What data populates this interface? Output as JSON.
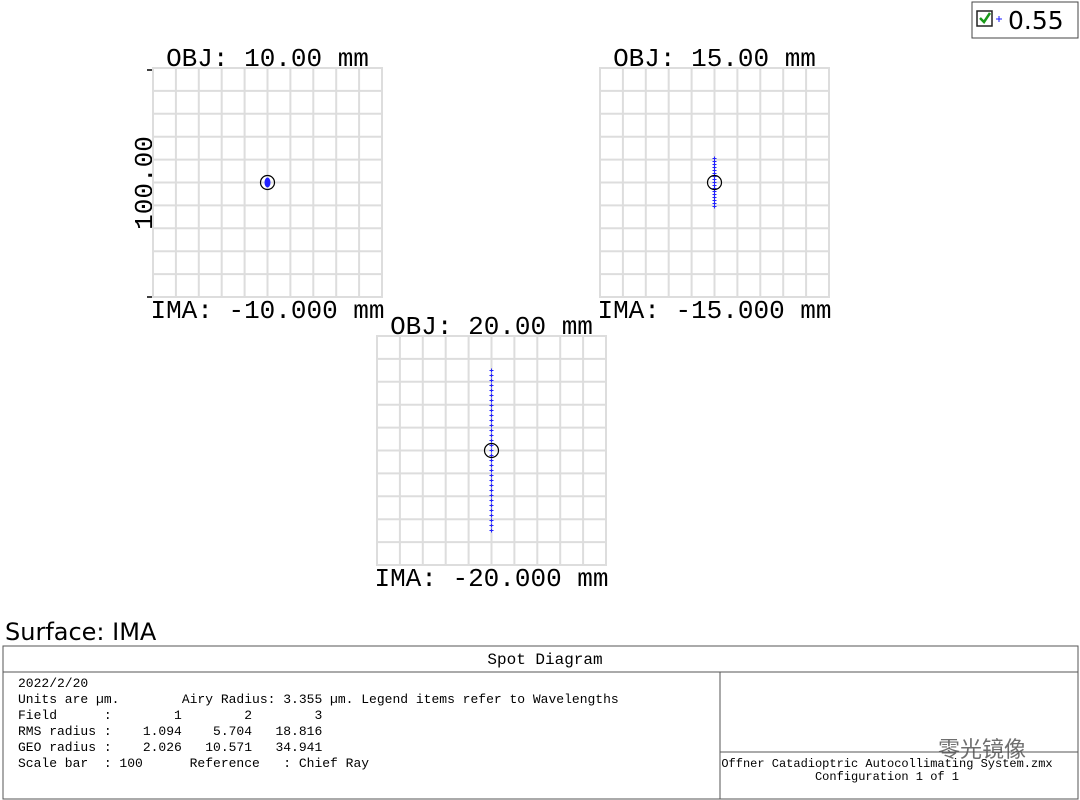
{
  "legend": {
    "wavelength": "0.55"
  },
  "plots": [
    {
      "obj": "OBJ: 10.00 mm",
      "ima": "IMA: -10.000 mm"
    },
    {
      "obj": "OBJ: 15.00 mm",
      "ima": "IMA: -15.000 mm"
    },
    {
      "obj": "OBJ: 20.00 mm",
      "ima": "IMA: -20.000 mm"
    }
  ],
  "scale_label": "100.00",
  "surface": "Surface: IMA",
  "footer": {
    "title": "Spot Diagram",
    "lines": [
      "2022/2/20",
      "Units are µm.        Airy Radius: 3.355 µm. Legend items refer to Wavelengths",
      "Field      :        1        2        3",
      "RMS radius :    1.094    5.704   18.816",
      "GEO radius :    2.026   10.571   34.941",
      "Scale bar  : 100      Reference   : Chief Ray"
    ],
    "file": "Offner Catadioptric Autocollimating System.zmx",
    "config": "Configuration 1 of 1",
    "watermark": "零光镜像"
  }
}
